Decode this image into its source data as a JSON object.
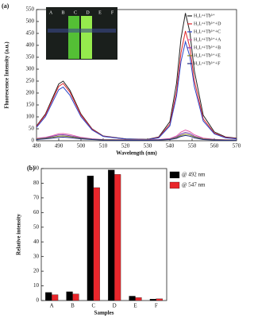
{
  "chart_data": [
    {
      "type": "line",
      "panel_label": "(a)",
      "xlabel": "Wavelength (nm)",
      "ylabel": "Fluorescence Intensity (a.u.)",
      "inset_labels": [
        "A",
        "B",
        "C",
        "D",
        "E",
        "F"
      ],
      "x": [
        480,
        484,
        487,
        490,
        492,
        495,
        500,
        505,
        510,
        520,
        530,
        535,
        540,
        543,
        545,
        547,
        549,
        551,
        555,
        560,
        565,
        570
      ],
      "xlim": [
        480,
        570
      ],
      "xticks": [
        480,
        490,
        500,
        510,
        520,
        530,
        540,
        550,
        560,
        570
      ],
      "ylim": [
        0,
        550
      ],
      "yticks": [
        0,
        50,
        100,
        150,
        200,
        250,
        300,
        350,
        400,
        450,
        500,
        550
      ],
      "series": [
        {
          "name": "H₂Lᵃ+Tb³⁺",
          "color": "#222222",
          "values": [
            62,
            112,
            175,
            238,
            250,
            212,
            112,
            50,
            20,
            8,
            6,
            16,
            80,
            241,
            428,
            535,
            455,
            294,
            107,
            37,
            16,
            11
          ]
        },
        {
          "name": "H₂Lᵃ+Tb³⁺+D",
          "color": "#e0262b",
          "values": [
            60,
            108,
            168,
            228,
            240,
            204,
            108,
            48,
            19,
            7,
            5,
            14,
            69,
            207,
            368,
            460,
            391,
            253,
            92,
            32,
            14,
            9
          ]
        },
        {
          "name": "H₂Lᵃ+Tb³⁺+C",
          "color": "#2a44c8",
          "values": [
            56,
            101,
            158,
            214,
            225,
            191,
            101,
            45,
            18,
            7,
            5,
            12,
            62,
            187,
            332,
            415,
            353,
            228,
            83,
            29,
            12,
            8
          ]
        },
        {
          "name": "H₂Lᵃ+Tb³⁺+A",
          "color": "#e05aa8",
          "values": [
            10,
            14,
            21,
            29,
            30,
            26,
            14,
            8,
            5,
            4,
            4,
            5,
            9,
            20,
            36,
            45,
            38,
            25,
            11,
            6,
            4,
            3
          ]
        },
        {
          "name": "H₂Lᵃ+Tb³⁺+B",
          "color": "#7a3cb0",
          "values": [
            8,
            12,
            18,
            24,
            25,
            21,
            12,
            7,
            4,
            3,
            3,
            4,
            7,
            16,
            28,
            35,
            30,
            19,
            8,
            5,
            3,
            3
          ]
        },
        {
          "name": "H₂Lᵃ+Tb³⁺+E",
          "color": "#8a8a20",
          "values": [
            7,
            10,
            14,
            19,
            20,
            17,
            10,
            6,
            4,
            3,
            3,
            3,
            6,
            13,
            22,
            28,
            24,
            16,
            7,
            4,
            3,
            2
          ]
        },
        {
          "name": "H₂Lᵃ+Tb³⁺+F",
          "color": "#1e2a80",
          "values": [
            5,
            8,
            11,
            14,
            15,
            13,
            8,
            5,
            3,
            2,
            2,
            3,
            5,
            10,
            18,
            22,
            19,
            12,
            5,
            3,
            2,
            2
          ]
        }
      ]
    },
    {
      "type": "bar",
      "panel_label": "(b)",
      "xlabel": "Samples",
      "ylabel": "Relative intensity",
      "categories": [
        "A",
        "B",
        "C",
        "D",
        "E",
        "F"
      ],
      "ylim": [
        0,
        90
      ],
      "yticks": [
        0,
        10,
        20,
        30,
        40,
        50,
        60,
        70,
        80,
        90
      ],
      "series": [
        {
          "name": "@ 492 nm",
          "color": "#000000",
          "values": [
            5.5,
            6,
            85,
            89,
            3,
            1
          ]
        },
        {
          "name": "@ 547 nm",
          "color": "#e8262b",
          "values": [
            4,
            4.5,
            77,
            86,
            2,
            1.2
          ]
        }
      ]
    }
  ]
}
